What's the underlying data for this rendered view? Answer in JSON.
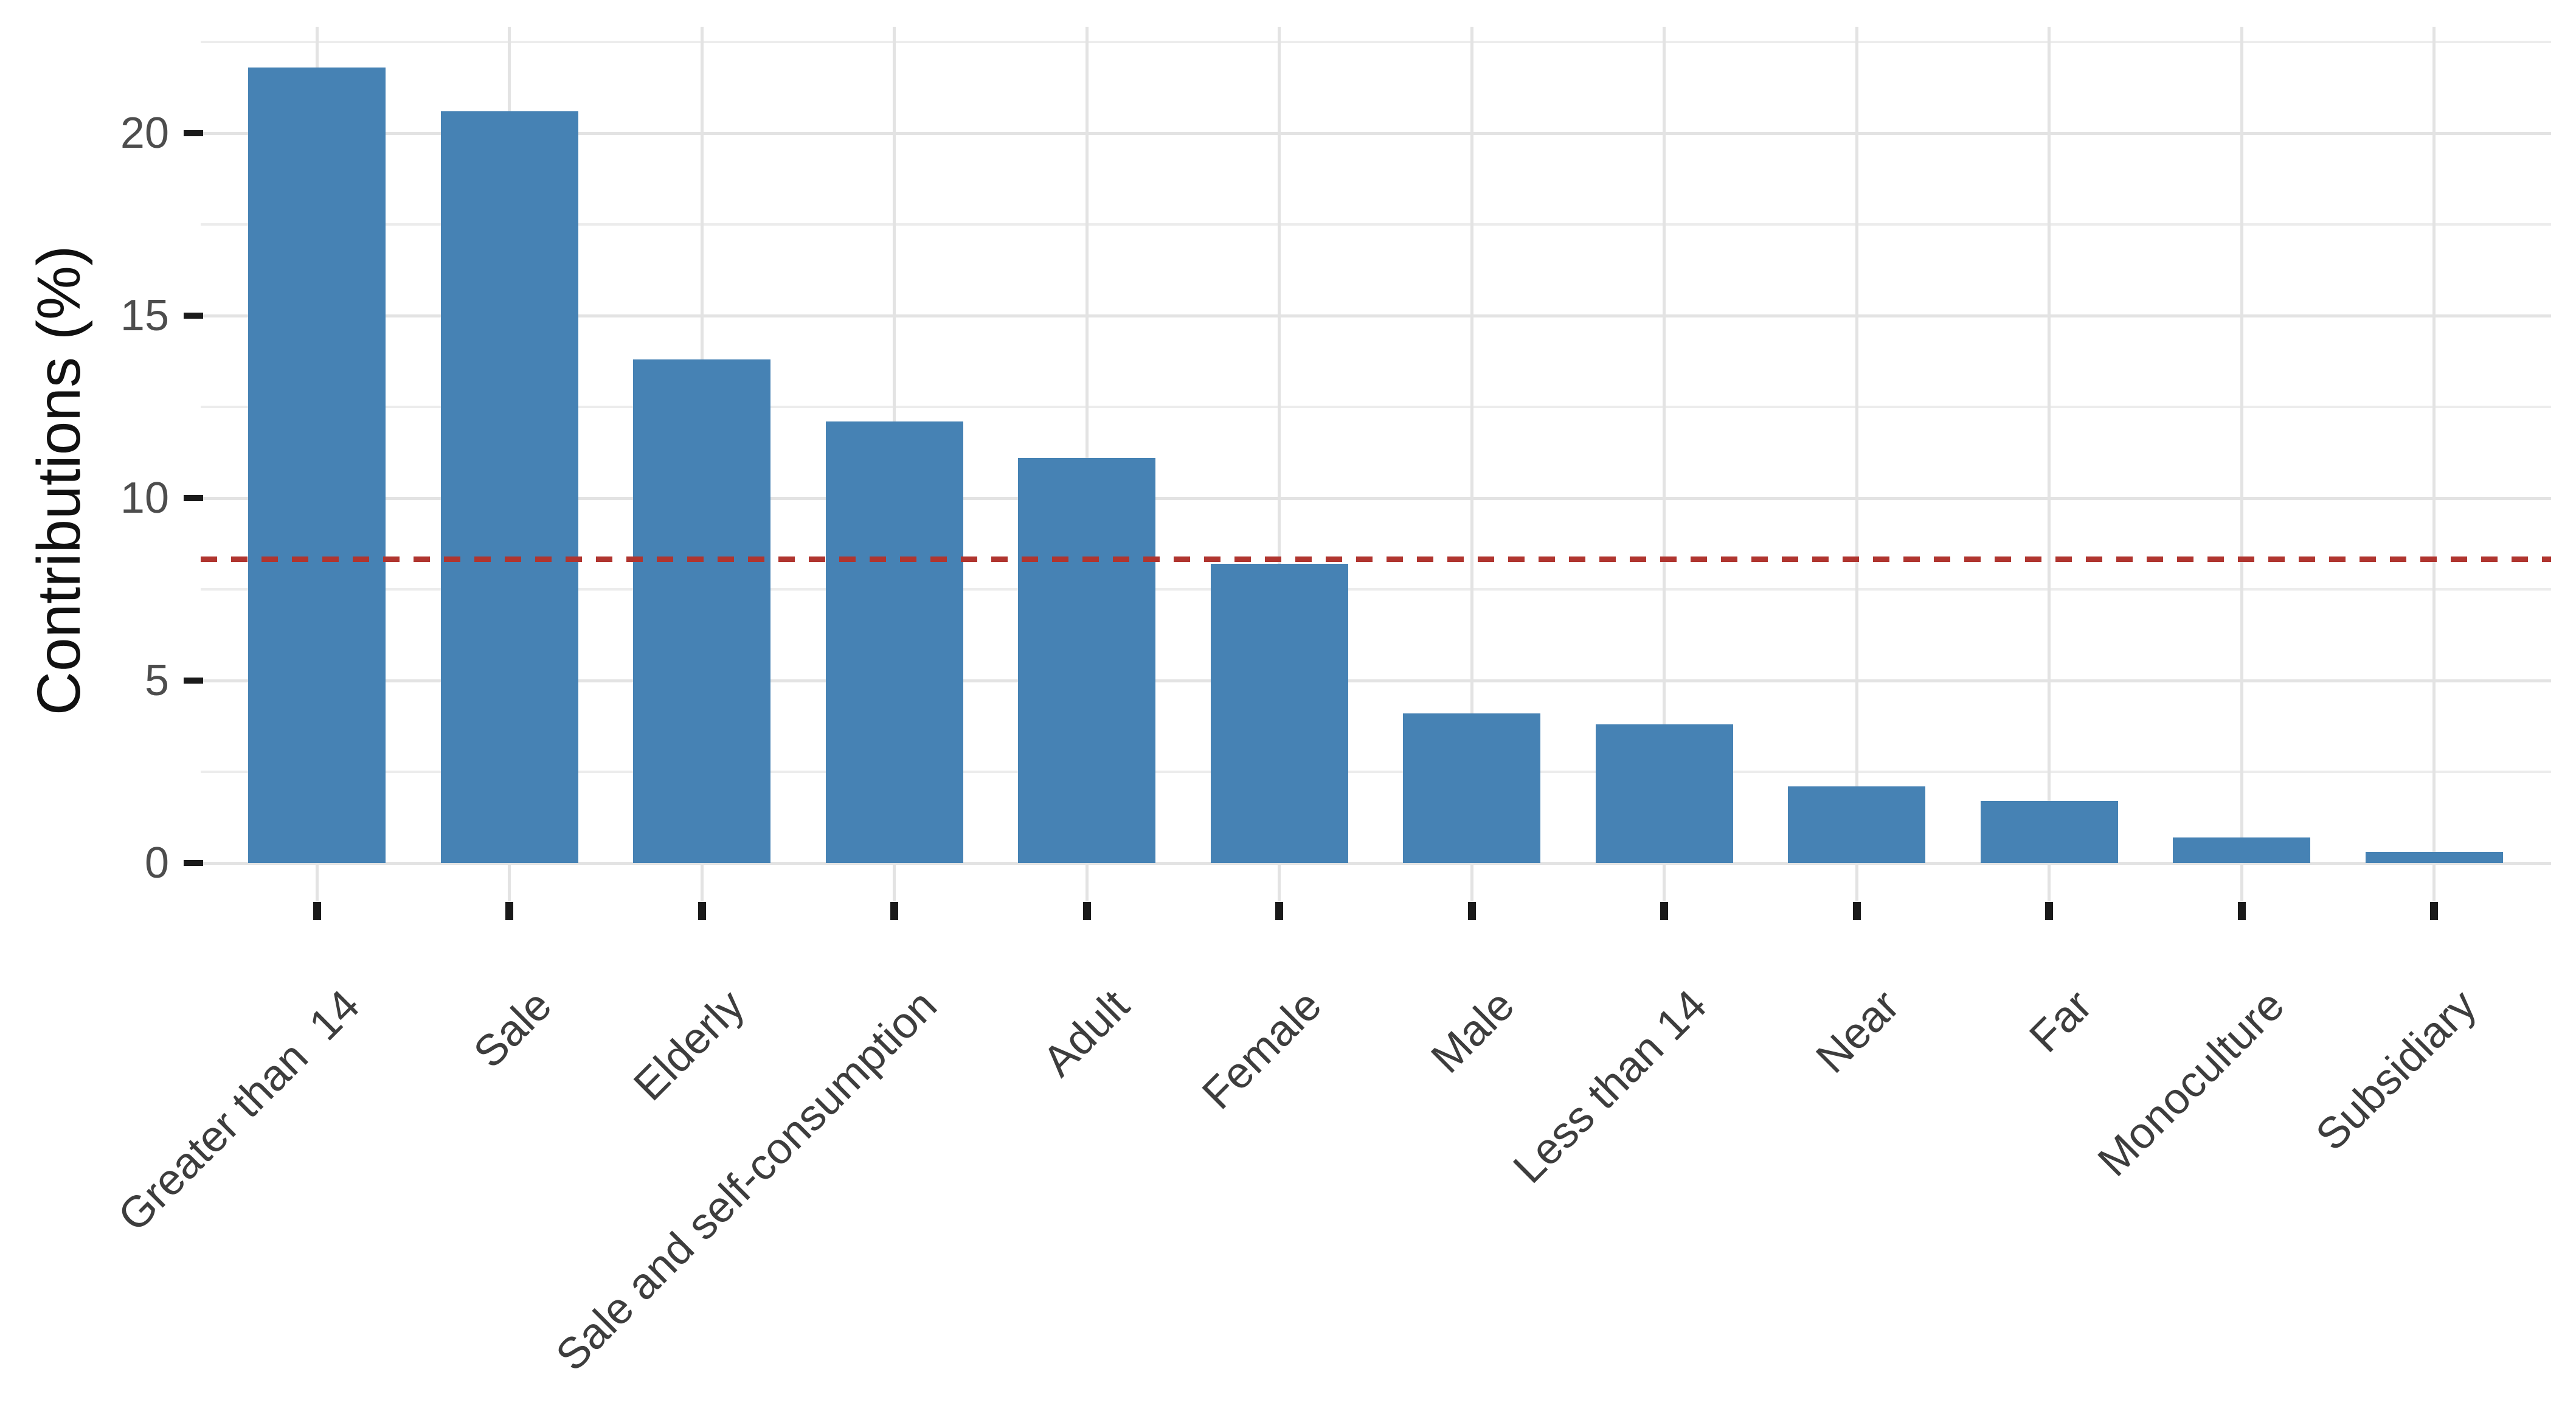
{
  "chart_data": {
    "type": "bar",
    "title": "",
    "xlabel": "",
    "ylabel": "Contributions (%)",
    "categories": [
      "Greater than  14",
      "Sale",
      "Elderly",
      "Sale and self-consumption",
      "Adult",
      "Female",
      "Male",
      "Less than 14",
      "Near",
      "Far",
      "Monoculture",
      "Subsidiary"
    ],
    "values": [
      21.8,
      20.6,
      13.8,
      12.1,
      11.1,
      8.2,
      4.1,
      3.8,
      2.1,
      1.7,
      0.7,
      0.3
    ],
    "yticks": [
      0,
      5,
      10,
      15,
      20
    ],
    "ytick_labels": [
      "0",
      "5",
      "10",
      "15",
      "20"
    ],
    "ylim": [
      0,
      22.9
    ],
    "minor_grid_step": 2.5,
    "grid": true,
    "legend": false,
    "bar_color": "#4682B4",
    "reference_line": {
      "value": 8.33,
      "style": "dashed",
      "color": "#B0352F"
    }
  },
  "colors": {
    "background": "#FFFFFF",
    "grid_major": "#E3E3E3",
    "grid_minor": "#ECECEC",
    "axis_tick": "#1A1A1A",
    "axis_text": "#4D4D4D",
    "x_axis_text": "#3D3D3D",
    "axis_title": "#111111"
  }
}
